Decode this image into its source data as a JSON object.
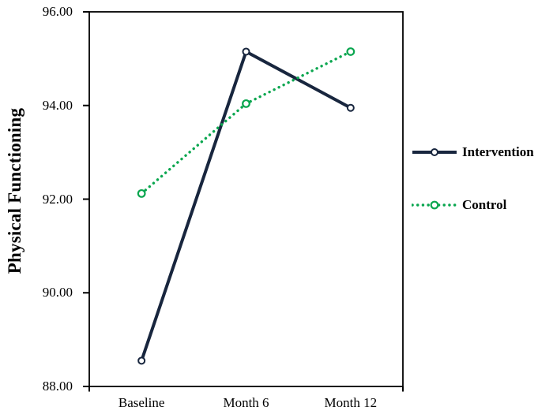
{
  "figure": {
    "background": "#ffffff",
    "axis_color": "#000000",
    "text_color": "#000000"
  },
  "legend": {
    "position": "right",
    "items": [
      {
        "label": "Intervention"
      },
      {
        "label": "Control"
      }
    ]
  },
  "chart_data": {
    "type": "line",
    "title": "",
    "xlabel": "",
    "ylabel": "Physical Functioning",
    "categories": [
      "Baseline",
      "Month 6",
      "Month 12"
    ],
    "series": [
      {
        "name": "Intervention",
        "values": [
          88.55,
          95.15,
          93.95
        ],
        "color": "#18263e",
        "line_style": "solid",
        "line_width": 4,
        "marker": "open-circle"
      },
      {
        "name": "Control",
        "values": [
          92.12,
          94.04,
          95.15
        ],
        "color": "#0aa64f",
        "line_style": "dotted",
        "line_width": 3.4,
        "marker": "open-circle"
      }
    ],
    "ylim": [
      88,
      96
    ],
    "ytick_values": [
      96,
      94,
      92,
      90,
      88
    ],
    "ytick_labels": [
      "96.00",
      "94.00",
      "92.00",
      "90.00",
      "88.00"
    ],
    "grid": false,
    "legend_position": "right"
  }
}
